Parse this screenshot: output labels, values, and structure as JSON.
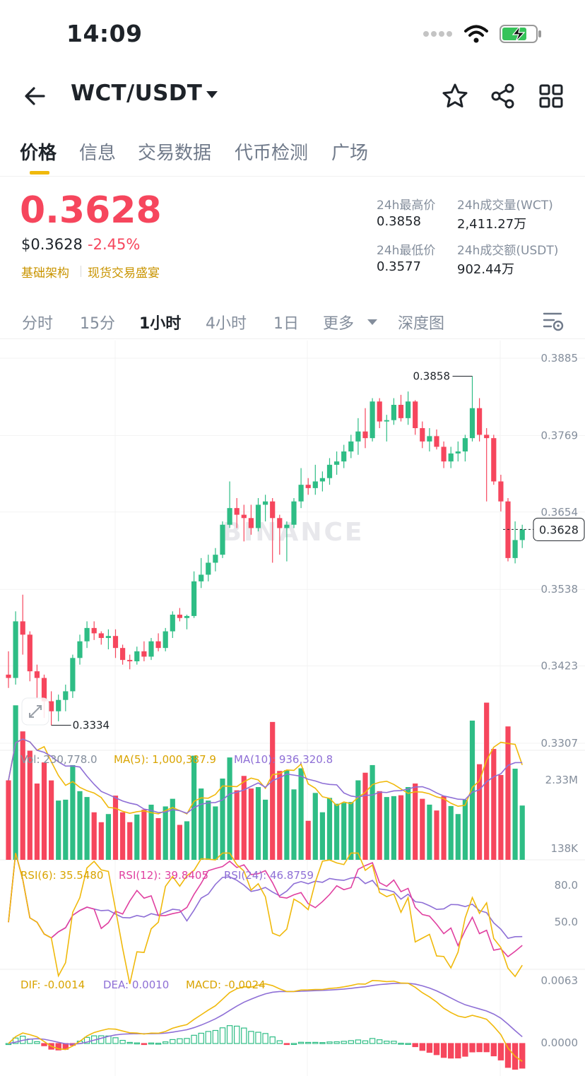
{
  "status": {
    "time": "14:09"
  },
  "header": {
    "pair": "WCT/USDT"
  },
  "tabs": [
    "价格",
    "信息",
    "交易数据",
    "代币检测",
    "广场"
  ],
  "price": {
    "last": "0.3628",
    "usd": "$0.3628",
    "change": "-2.45%",
    "tags": [
      "基础架构",
      "现货交易盛宴"
    ]
  },
  "stats": {
    "high_label": "24h最高价",
    "high": "0.3858",
    "vol_label": "24h成交量(WCT)",
    "vol": "2,411.27万",
    "low_label": "24h最低价",
    "low": "0.3577",
    "amt_label": "24h成交额(USDT)",
    "amt": "902.44万"
  },
  "timeframes": [
    "分时",
    "15分",
    "1小时",
    "4小时",
    "1日",
    "更多",
    "深度图"
  ],
  "colors": {
    "up": "#2ebd85",
    "down": "#f6465d",
    "accent": "#f0b90b",
    "ma5": "#f0b90b",
    "ma10": "#8e6fd6",
    "rsi12": "#e040a0"
  },
  "chart_data": [
    {
      "type": "candlestick",
      "pair": "WCT/USDT",
      "interval": "1小时",
      "watermark": "BINANCE",
      "ylim": [
        0.3307,
        0.3885
      ],
      "y_ticks": [
        "0.3885",
        "0.3769",
        "0.3654",
        "0.3538",
        "0.3423",
        "0.3307"
      ],
      "last_price_label": "0.3628",
      "annotations": {
        "high": "0.3858",
        "low": "0.3334"
      },
      "candles": [
        [
          0.341,
          0.3445,
          0.339,
          0.3405
        ],
        [
          0.3405,
          0.3505,
          0.3395,
          0.349
        ],
        [
          0.349,
          0.353,
          0.344,
          0.347
        ],
        [
          0.347,
          0.3475,
          0.34,
          0.3415
        ],
        [
          0.3415,
          0.3425,
          0.3375,
          0.3405
        ],
        [
          0.3405,
          0.341,
          0.3345,
          0.337
        ],
        [
          0.337,
          0.3385,
          0.3334,
          0.3355
        ],
        [
          0.3355,
          0.338,
          0.334,
          0.3372
        ],
        [
          0.3372,
          0.3395,
          0.3355,
          0.3385
        ],
        [
          0.3385,
          0.344,
          0.3375,
          0.3435
        ],
        [
          0.3435,
          0.347,
          0.3425,
          0.346
        ],
        [
          0.346,
          0.349,
          0.345,
          0.348
        ],
        [
          0.348,
          0.349,
          0.3462,
          0.3472
        ],
        [
          0.3472,
          0.3475,
          0.3455,
          0.3465
        ],
        [
          0.3465,
          0.3478,
          0.3448,
          0.3468
        ],
        [
          0.3468,
          0.3478,
          0.3435,
          0.345
        ],
        [
          0.345,
          0.3455,
          0.3425,
          0.3432
        ],
        [
          0.3432,
          0.344,
          0.3418,
          0.343
        ],
        [
          0.343,
          0.3452,
          0.3425,
          0.3445
        ],
        [
          0.3445,
          0.346,
          0.343,
          0.3437
        ],
        [
          0.3437,
          0.3465,
          0.3432,
          0.346
        ],
        [
          0.346,
          0.3472,
          0.3445,
          0.345
        ],
        [
          0.345,
          0.348,
          0.3445,
          0.3475
        ],
        [
          0.3475,
          0.3505,
          0.3465,
          0.35
        ],
        [
          0.35,
          0.351,
          0.349,
          0.3495
        ],
        [
          0.3495,
          0.35,
          0.3478,
          0.3498
        ],
        [
          0.3498,
          0.3565,
          0.3495,
          0.355
        ],
        [
          0.355,
          0.3585,
          0.354,
          0.356
        ],
        [
          0.356,
          0.359,
          0.355,
          0.3578
        ],
        [
          0.3578,
          0.36,
          0.3565,
          0.359
        ],
        [
          0.359,
          0.364,
          0.3585,
          0.3635
        ],
        [
          0.3635,
          0.37,
          0.363,
          0.366
        ],
        [
          0.366,
          0.3675,
          0.363,
          0.365
        ],
        [
          0.365,
          0.3665,
          0.361,
          0.3645
        ],
        [
          0.3645,
          0.3665,
          0.362,
          0.363
        ],
        [
          0.363,
          0.3675,
          0.3625,
          0.3665
        ],
        [
          0.3665,
          0.368,
          0.364,
          0.367
        ],
        [
          0.367,
          0.3675,
          0.3578,
          0.3645
        ],
        [
          0.3645,
          0.365,
          0.359,
          0.363
        ],
        [
          0.363,
          0.364,
          0.358,
          0.3635
        ],
        [
          0.3635,
          0.3675,
          0.363,
          0.367
        ],
        [
          0.367,
          0.372,
          0.366,
          0.3695
        ],
        [
          0.3695,
          0.3705,
          0.368,
          0.369
        ],
        [
          0.369,
          0.3725,
          0.368,
          0.37
        ],
        [
          0.37,
          0.3715,
          0.3685,
          0.3705
        ],
        [
          0.3705,
          0.3735,
          0.3695,
          0.3725
        ],
        [
          0.3725,
          0.3745,
          0.371,
          0.373
        ],
        [
          0.373,
          0.3755,
          0.372,
          0.3745
        ],
        [
          0.3745,
          0.377,
          0.3735,
          0.376
        ],
        [
          0.376,
          0.3795,
          0.374,
          0.3775
        ],
        [
          0.3775,
          0.381,
          0.375,
          0.3765
        ],
        [
          0.3765,
          0.3825,
          0.376,
          0.382
        ],
        [
          0.382,
          0.3825,
          0.378,
          0.379
        ],
        [
          0.379,
          0.38,
          0.376,
          0.3792
        ],
        [
          0.3792,
          0.3825,
          0.3785,
          0.3815
        ],
        [
          0.3815,
          0.383,
          0.379,
          0.3795
        ],
        [
          0.3795,
          0.3835,
          0.3785,
          0.382
        ],
        [
          0.382,
          0.3822,
          0.377,
          0.378
        ],
        [
          0.378,
          0.379,
          0.375,
          0.376
        ],
        [
          0.376,
          0.378,
          0.3745,
          0.3768
        ],
        [
          0.3768,
          0.3778,
          0.3748,
          0.3752
        ],
        [
          0.3752,
          0.376,
          0.372,
          0.373
        ],
        [
          0.373,
          0.3752,
          0.372,
          0.3742
        ],
        [
          0.3742,
          0.376,
          0.373,
          0.3745
        ],
        [
          0.3745,
          0.377,
          0.373,
          0.3765
        ],
        [
          0.3765,
          0.3858,
          0.376,
          0.381
        ],
        [
          0.381,
          0.3825,
          0.376,
          0.377
        ],
        [
          0.377,
          0.378,
          0.367,
          0.3765
        ],
        [
          0.3765,
          0.377,
          0.3695,
          0.37
        ],
        [
          0.37,
          0.371,
          0.3655,
          0.367
        ],
        [
          0.367,
          0.3675,
          0.358,
          0.3585
        ],
        [
          0.3585,
          0.364,
          0.3577,
          0.3612
        ],
        [
          0.3612,
          0.3635,
          0.36,
          0.3628
        ]
      ]
    },
    {
      "type": "bar",
      "name": "Volume",
      "labels": {
        "vol": "Vol: 230,778.0",
        "ma5": "MA(5): 1,000,387.9",
        "ma10": "MA(10): 936,320.8"
      },
      "y_ticks": [
        "2.33M",
        "138K"
      ],
      "ylim": [
        0,
        2330000
      ]
    },
    {
      "type": "line",
      "name": "RSI",
      "labels": {
        "rsi6": "RSI(6): 35.5480",
        "rsi12": "RSI(12): 39.8405",
        "rsi24": "RSI(24): 46.8759"
      },
      "y_ticks": [
        "80.0",
        "50.0"
      ],
      "ylim": [
        20,
        90
      ]
    },
    {
      "type": "bar",
      "name": "MACD",
      "labels": {
        "dif": "DIF: -0.0014",
        "dea": "DEA: 0.0010",
        "macd": "MACD: -0.0024"
      },
      "y_ticks": [
        "0.0063",
        "0.0000"
      ],
      "ylim": [
        -0.0025,
        0.0063
      ]
    }
  ]
}
